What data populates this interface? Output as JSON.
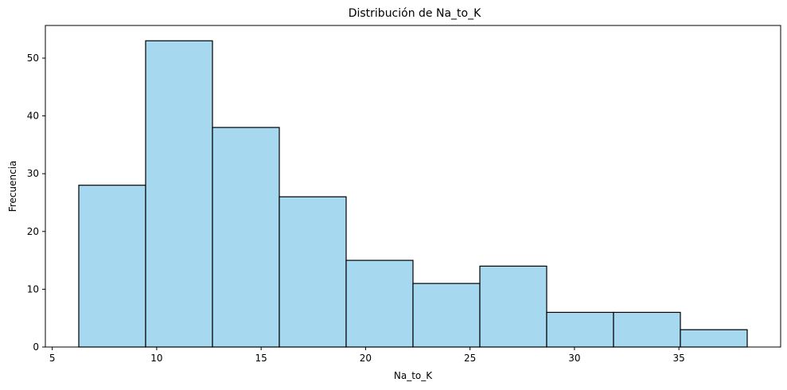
{
  "chart_data": {
    "type": "bar",
    "title": "Distribución de Na_to_K",
    "xlabel": "Na_to_K",
    "ylabel": "Frecuencia",
    "bin_edges": [
      6.27,
      9.47,
      12.67,
      15.87,
      19.07,
      22.27,
      25.47,
      28.67,
      31.87,
      35.07,
      38.27
    ],
    "values": [
      28,
      53,
      38,
      26,
      15,
      11,
      14,
      6,
      6,
      3
    ],
    "xlim": [
      4.67,
      39.87
    ],
    "ylim": [
      0,
      55.65
    ],
    "xticks": [
      5,
      10,
      15,
      20,
      25,
      30,
      35
    ],
    "yticks": [
      0,
      10,
      20,
      30,
      40,
      50
    ],
    "bar_color": "#a6d9ef",
    "edge_color": "#000000",
    "grid": false,
    "legend": false
  }
}
